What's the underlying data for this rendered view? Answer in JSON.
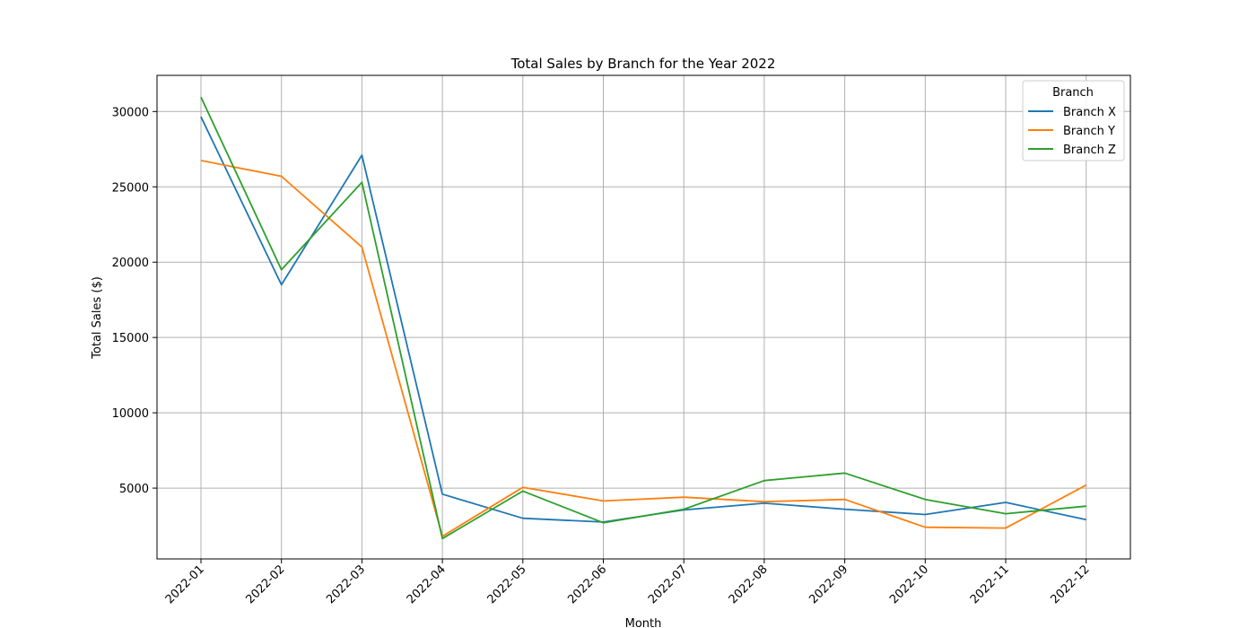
{
  "chart_data": {
    "type": "line",
    "title": "Total Sales by Branch for the Year 2022",
    "xlabel": "Month",
    "ylabel": "Total Sales ($)",
    "categories": [
      "2022-01",
      "2022-02",
      "2022-03",
      "2022-04",
      "2022-05",
      "2022-06",
      "2022-07",
      "2022-08",
      "2022-09",
      "2022-10",
      "2022-11",
      "2022-12"
    ],
    "ylim": [
      300,
      32400
    ],
    "yticks": [
      5000,
      10000,
      15000,
      20000,
      25000,
      30000
    ],
    "grid": true,
    "legend": {
      "title": "Branch",
      "placement": "top-right"
    },
    "series": [
      {
        "name": "Branch X",
        "color": "#1f77b4",
        "values": [
          29650,
          18500,
          27100,
          4600,
          3000,
          2750,
          3550,
          4000,
          3600,
          3250,
          4050,
          2900
        ]
      },
      {
        "name": "Branch Y",
        "color": "#ff7f0e",
        "values": [
          26750,
          25700,
          21000,
          1800,
          5050,
          4150,
          4400,
          4100,
          4250,
          2400,
          2350,
          5200
        ]
      },
      {
        "name": "Branch Z",
        "color": "#2ca02c",
        "values": [
          30950,
          19500,
          25300,
          1650,
          4800,
          2700,
          3600,
          5500,
          6000,
          4250,
          3300,
          3800
        ]
      }
    ]
  }
}
